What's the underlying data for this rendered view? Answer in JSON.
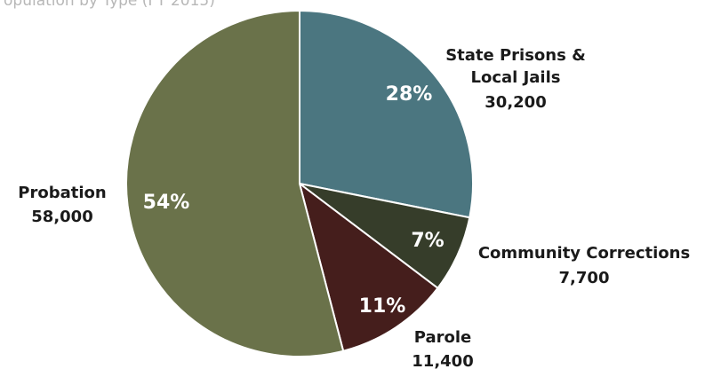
{
  "chart_data": {
    "type": "pie",
    "title": "opulation by Type (FY 2015)",
    "slices": [
      {
        "label": "State Prisons &",
        "label2": "Local Jails",
        "value_text": "30,200",
        "value": 30200,
        "pct_label": "28%",
        "color": "#4b7680"
      },
      {
        "label": "Community Corrections",
        "label2": "",
        "value_text": "7,700",
        "value": 7700,
        "pct_label": "7%",
        "color": "#363d2a"
      },
      {
        "label": "Parole",
        "label2": "",
        "value_text": "11,400",
        "value": 11400,
        "pct_label": "11%",
        "color": "#451e1c"
      },
      {
        "label": "Probation",
        "label2": "",
        "value_text": "58,000",
        "value": 58000,
        "pct_label": "54%",
        "color": "#6a724a"
      }
    ]
  }
}
